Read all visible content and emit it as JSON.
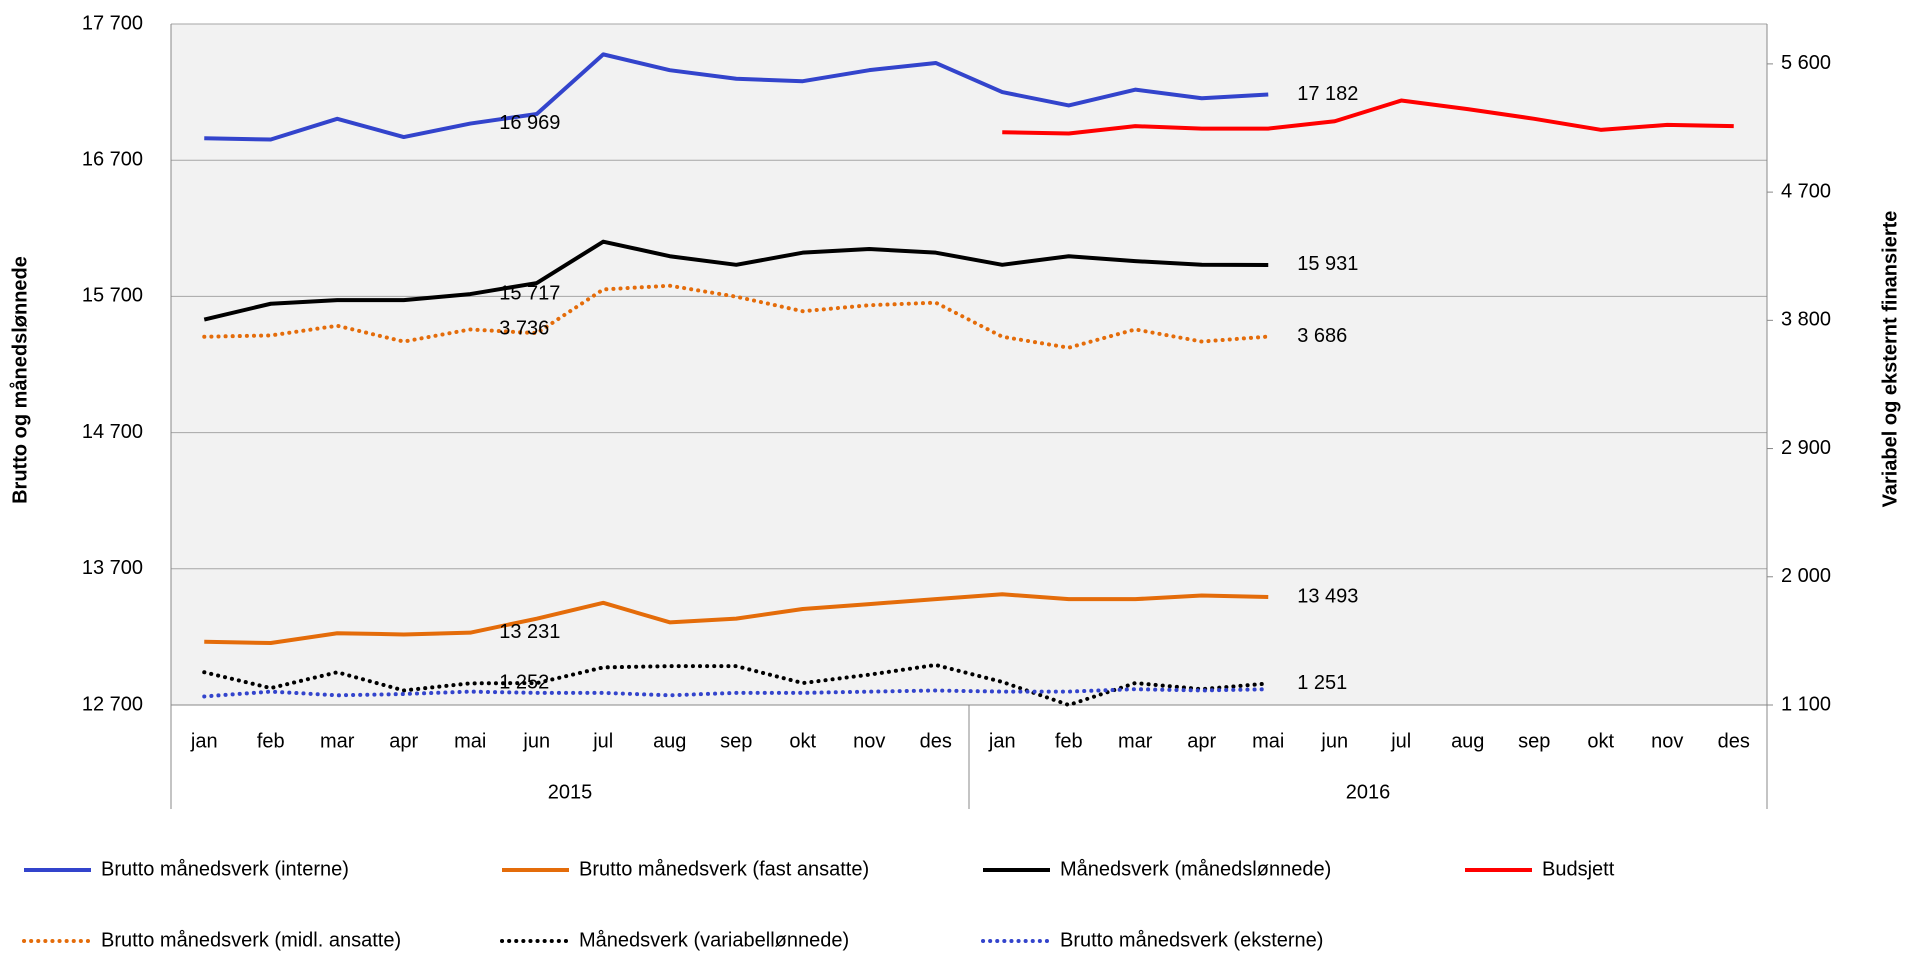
{
  "chart_data": {
    "type": "line",
    "y_axis_label": "Brutto og månedslønnede",
    "y2_axis_label": "Variabel og eksternt finansierte",
    "categories": [
      "jan",
      "feb",
      "mar",
      "apr",
      "mai",
      "jun",
      "jul",
      "aug",
      "sep",
      "okt",
      "nov",
      "des",
      "jan",
      "feb",
      "mar",
      "apr",
      "mai",
      "jun",
      "jul",
      "aug",
      "sep",
      "okt",
      "nov",
      "des"
    ],
    "groups": [
      {
        "label": "2015",
        "count": 12
      },
      {
        "label": "2016",
        "count": 12
      }
    ],
    "ylim": [
      12700,
      17700
    ],
    "yticks": [
      {
        "value": 12700,
        "label": "12 700"
      },
      {
        "value": 13700,
        "label": "13 700"
      },
      {
        "value": 14700,
        "label": "14 700"
      },
      {
        "value": 15700,
        "label": "15 700"
      },
      {
        "value": 16700,
        "label": "16 700"
      },
      {
        "value": 17700,
        "label": "17 700"
      }
    ],
    "y2lim": [
      1100,
      5880
    ],
    "y2ticks": [
      {
        "value": 1100,
        "label": "1 100"
      },
      {
        "value": 2000,
        "label": "2 000"
      },
      {
        "value": 2900,
        "label": "2 900"
      },
      {
        "value": 3800,
        "label": "3 800"
      },
      {
        "value": 4700,
        "label": "4 700"
      },
      {
        "value": 5600,
        "label": "5 600"
      }
    ],
    "grid": true,
    "series": [
      {
        "name": "Brutto månedsverk (interne)",
        "color": "#3344cc",
        "dotted": false,
        "values": [
          16861,
          16852,
          17004,
          16870,
          16969,
          17039,
          17477,
          17361,
          17298,
          17280,
          17361,
          17414,
          17200,
          17102,
          17218,
          17155,
          17182,
          null,
          null,
          null,
          null,
          null,
          null,
          null
        ],
        "value_labels": [
          null,
          null,
          null,
          null,
          "16 969",
          null,
          null,
          null,
          null,
          null,
          null,
          null,
          null,
          null,
          null,
          null,
          "17 182",
          null,
          null,
          null,
          null,
          null,
          null,
          null
        ]
      },
      {
        "name": "Brutto månedsverk (fast ansatte)",
        "color": "#e46c0a",
        "dotted": false,
        "values": [
          13164,
          13155,
          13227,
          13218,
          13231,
          13334,
          13450,
          13307,
          13334,
          13405,
          13441,
          13477,
          13513,
          13477,
          13477,
          13504,
          13493,
          null,
          null,
          null,
          null,
          null,
          null,
          null
        ],
        "value_labels": [
          null,
          null,
          null,
          null,
          "13 231",
          null,
          null,
          null,
          null,
          null,
          null,
          null,
          null,
          null,
          null,
          null,
          "13 493",
          null,
          null,
          null,
          null,
          null,
          null,
          null
        ]
      },
      {
        "name": "Månedsverk (månedslønnede)",
        "color": "#000000",
        "dotted": false,
        "values": [
          15530,
          15646,
          15673,
          15673,
          15717,
          15798,
          16102,
          15995,
          15932,
          16021,
          16048,
          16021,
          15932,
          15995,
          15959,
          15932,
          15931,
          null,
          null,
          null,
          null,
          null,
          null,
          null
        ],
        "value_labels": [
          null,
          null,
          null,
          null,
          "15 717",
          null,
          null,
          null,
          null,
          null,
          null,
          null,
          null,
          null,
          null,
          null,
          "15 931",
          null,
          null,
          null,
          null,
          null,
          null,
          null
        ]
      },
      {
        "name": "Budsjett",
        "color": "#ff0000",
        "dotted": false,
        "values": [
          null,
          null,
          null,
          null,
          null,
          null,
          null,
          null,
          null,
          null,
          null,
          null,
          16905,
          16896,
          16950,
          16932,
          16932,
          16986,
          17138,
          17075,
          17004,
          16923,
          16959,
          16950
        ]
      },
      {
        "name": "Brutto månedsverk (midl. ansatte)",
        "color": "#e46c0a",
        "dotted": true,
        "axis": "y2",
        "values": [
          3685,
          3694,
          3762,
          3651,
          3736,
          3710,
          4017,
          4043,
          3966,
          3864,
          3906,
          3924,
          3685,
          3608,
          3736,
          3651,
          3686,
          null,
          null,
          null,
          null,
          null,
          null,
          null
        ],
        "value_labels": [
          null,
          null,
          null,
          null,
          "3 736",
          null,
          null,
          null,
          null,
          null,
          null,
          null,
          null,
          null,
          null,
          null,
          "3 686",
          null,
          null,
          null,
          null,
          null,
          null,
          null
        ]
      },
      {
        "name": "Månedsverk (variabellønnede)",
        "color": "#000000",
        "dotted": true,
        "axis": "y2",
        "values": [
          1330,
          1219,
          1330,
          1202,
          1252,
          1254,
          1364,
          1373,
          1373,
          1254,
          1313,
          1381,
          1262,
          1100,
          1254,
          1211,
          1251,
          null,
          null,
          null,
          null,
          null,
          null,
          null
        ],
        "value_labels": [
          null,
          null,
          null,
          null,
          "1 252",
          null,
          null,
          null,
          null,
          null,
          null,
          null,
          null,
          null,
          null,
          null,
          "1 251",
          null,
          null,
          null,
          null,
          null,
          null,
          null
        ]
      },
      {
        "name": "Brutto månedsverk (eksterne)",
        "color": "#3344cc",
        "dotted": true,
        "axis": "y2",
        "values": [
          1160,
          1194,
          1168,
          1177,
          1194,
          1185,
          1185,
          1168,
          1185,
          1185,
          1194,
          1202,
          1194,
          1194,
          1211,
          1202,
          1211,
          null,
          null,
          null,
          null,
          null,
          null,
          null
        ]
      }
    ]
  }
}
